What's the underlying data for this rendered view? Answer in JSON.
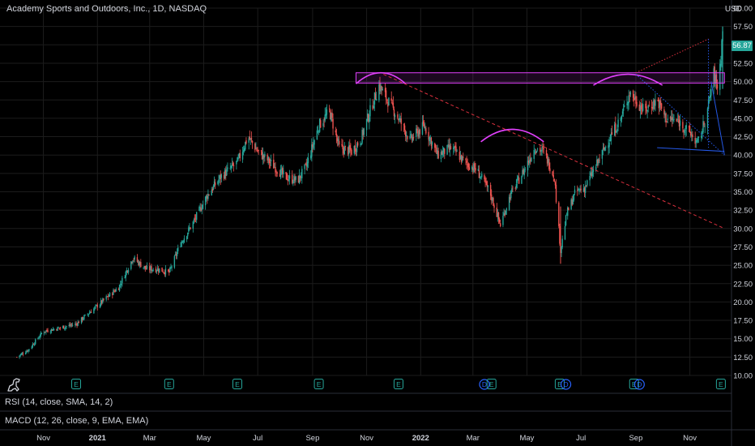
{
  "header": {
    "title": "Academy Sports and Outdoors, Inc., 1D, NASDAQ",
    "currency": "USD",
    "last_price": "56.87"
  },
  "panes": {
    "rsi_label": "RSI (14, close, SMA, 14, 2)",
    "macd_label": "MACD (12, 26, close, 9, EMA, EMA)"
  },
  "colors": {
    "background": "#000000",
    "up": "#26a69a",
    "down": "#ef5350",
    "drawing": "#e040fb",
    "trend_red": "#f23645",
    "trend_blue": "#2962ff",
    "earnings": "#26a69a",
    "dividend": "#2962ff",
    "grid": "#1c1c1c",
    "text": "#d1d4dc"
  },
  "event_markers": {
    "earnings_icon": "E",
    "dividend_icon": "D",
    "items": [
      {
        "type": "E",
        "date": "2020-12-08"
      },
      {
        "type": "E",
        "date": "2021-03-23"
      },
      {
        "type": "E",
        "date": "2021-06-08"
      },
      {
        "type": "E",
        "date": "2021-09-08"
      },
      {
        "type": "E",
        "date": "2021-12-07"
      },
      {
        "type": "D",
        "date": "2022-03-14"
      },
      {
        "type": "E",
        "date": "2022-03-22"
      },
      {
        "type": "E",
        "date": "2022-06-07"
      },
      {
        "type": "D",
        "date": "2022-06-14"
      },
      {
        "type": "E",
        "date": "2022-08-30"
      },
      {
        "type": "D",
        "date": "2022-09-05"
      },
      {
        "type": "E",
        "date": "2022-12-06"
      }
    ]
  },
  "chart_data": {
    "type": "candlestick",
    "symbol": "Academy Sports and Outdoors, Inc.",
    "interval": "1D",
    "exchange": "NASDAQ",
    "y_axis": {
      "ylim": [
        10.0,
        60.0
      ],
      "tick_labels": [
        "10.00",
        "12.50",
        "15.00",
        "17.50",
        "20.00",
        "22.50",
        "25.00",
        "27.50",
        "30.00",
        "32.50",
        "35.00",
        "37.50",
        "40.00",
        "42.50",
        "45.00",
        "47.50",
        "50.00",
        "52.50",
        "55.00",
        "57.50",
        "60.00"
      ]
    },
    "x_axis": {
      "range": [
        "2020-10-01",
        "2022-12-10"
      ],
      "ticks": [
        {
          "label": "Nov",
          "date": "2020-11-01"
        },
        {
          "label": "2021",
          "date": "2021-01-01"
        },
        {
          "label": "Mar",
          "date": "2021-03-01"
        },
        {
          "label": "May",
          "date": "2021-05-01"
        },
        {
          "label": "Jul",
          "date": "2021-07-01"
        },
        {
          "label": "Sep",
          "date": "2021-09-01"
        },
        {
          "label": "Nov",
          "date": "2021-11-01"
        },
        {
          "label": "2022",
          "date": "2022-01-01"
        },
        {
          "label": "Mar",
          "date": "2022-03-01"
        },
        {
          "label": "May",
          "date": "2022-05-01"
        },
        {
          "label": "Jul",
          "date": "2022-07-01"
        },
        {
          "label": "Sep",
          "date": "2022-09-01"
        },
        {
          "label": "Nov",
          "date": "2022-11-01"
        }
      ]
    },
    "last_price": 56.87,
    "close_path": [
      [
        "2020-10-02",
        12.5
      ],
      [
        "2020-10-15",
        13.5
      ],
      [
        "2020-11-01",
        16.0
      ],
      [
        "2020-11-20",
        16.5
      ],
      [
        "2020-12-08",
        17.0
      ],
      [
        "2021-01-01",
        19.5
      ],
      [
        "2021-01-25",
        22.0
      ],
      [
        "2021-02-10",
        26.0
      ],
      [
        "2021-02-25",
        24.5
      ],
      [
        "2021-03-10",
        24.5
      ],
      [
        "2021-03-23",
        24.0
      ],
      [
        "2021-04-05",
        28.0
      ],
      [
        "2021-04-20",
        31.0
      ],
      [
        "2021-05-05",
        34.5
      ],
      [
        "2021-05-20",
        37.0
      ],
      [
        "2021-06-08",
        39.0
      ],
      [
        "2021-06-20",
        42.5
      ],
      [
        "2021-07-01",
        40.5
      ],
      [
        "2021-07-15",
        39.0
      ],
      [
        "2021-08-01",
        37.0
      ],
      [
        "2021-08-15",
        36.5
      ],
      [
        "2021-08-25",
        38.5
      ],
      [
        "2021-09-08",
        44.0
      ],
      [
        "2021-09-20",
        46.0
      ],
      [
        "2021-10-01",
        41.0
      ],
      [
        "2021-10-15",
        40.5
      ],
      [
        "2021-10-25",
        42.0
      ],
      [
        "2021-11-05",
        46.0
      ],
      [
        "2021-11-15",
        49.5
      ],
      [
        "2021-11-22",
        48.0
      ],
      [
        "2021-12-07",
        45.0
      ],
      [
        "2021-12-20",
        42.0
      ],
      [
        "2022-01-05",
        44.0
      ],
      [
        "2022-01-20",
        40.0
      ],
      [
        "2022-02-05",
        41.0
      ],
      [
        "2022-02-20",
        39.0
      ],
      [
        "2022-03-05",
        38.0
      ],
      [
        "2022-03-20",
        35.0
      ],
      [
        "2022-04-01",
        30.5
      ],
      [
        "2022-04-12",
        34.5
      ],
      [
        "2022-04-28",
        38.0
      ],
      [
        "2022-05-10",
        41.0
      ],
      [
        "2022-05-20",
        40.5
      ],
      [
        "2022-06-01",
        37.0
      ],
      [
        "2022-06-08",
        27.0
      ],
      [
        "2022-06-15",
        32.0
      ],
      [
        "2022-06-25",
        35.0
      ],
      [
        "2022-07-05",
        35.5
      ],
      [
        "2022-07-20",
        39.0
      ],
      [
        "2022-08-01",
        42.0
      ],
      [
        "2022-08-15",
        45.0
      ],
      [
        "2022-08-25",
        48.5
      ],
      [
        "2022-09-01",
        47.5
      ],
      [
        "2022-09-10",
        46.0
      ],
      [
        "2022-09-25",
        47.5
      ],
      [
        "2022-10-05",
        45.0
      ],
      [
        "2022-10-20",
        44.5
      ],
      [
        "2022-11-01",
        43.0
      ],
      [
        "2022-11-10",
        41.5
      ],
      [
        "2022-11-20",
        45.5
      ],
      [
        "2022-11-28",
        51.0
      ],
      [
        "2022-12-03",
        49.0
      ],
      [
        "2022-12-08",
        56.87
      ]
    ],
    "annotations": {
      "resistance_zone": {
        "x": [
          "2021-10-20",
          "2022-12-10"
        ],
        "y": [
          49.8,
          51.2
        ]
      },
      "arcs": [
        {
          "x": [
            "2021-10-20",
            "2021-12-15"
          ],
          "peak": 51.2,
          "ends": 49.7
        },
        {
          "x": [
            "2022-03-10",
            "2022-05-20"
          ],
          "peak": 43.5,
          "ends": 41.8
        },
        {
          "x": [
            "2022-07-15",
            "2022-10-01"
          ],
          "peak": 51.0,
          "ends": 49.5
        }
      ],
      "trendlines": [
        {
          "style": "dashed",
          "color": "red",
          "from": [
            "2021-11-20",
            51.0
          ],
          "to": [
            "2022-12-10",
            30.0
          ]
        },
        {
          "style": "dotted",
          "color": "red",
          "from": [
            "2022-09-01",
            51.2
          ],
          "to": [
            "2022-11-22",
            55.8
          ]
        },
        {
          "style": "dotted",
          "color": "blue",
          "from": [
            "2022-11-22",
            55.8
          ],
          "to": [
            "2022-11-22",
            41.0
          ]
        },
        {
          "style": "dotted",
          "color": "blue",
          "from": [
            "2022-09-01",
            51.0
          ],
          "to": [
            "2022-12-10",
            40.0
          ]
        },
        {
          "style": "solid",
          "color": "blue",
          "from": [
            "2022-09-25",
            41.0
          ],
          "to": [
            "2022-12-10",
            40.5
          ]
        },
        {
          "style": "solid",
          "color": "blue",
          "from": [
            "2022-11-25",
            50.0
          ],
          "to": [
            "2022-12-10",
            40.0
          ]
        }
      ]
    }
  }
}
